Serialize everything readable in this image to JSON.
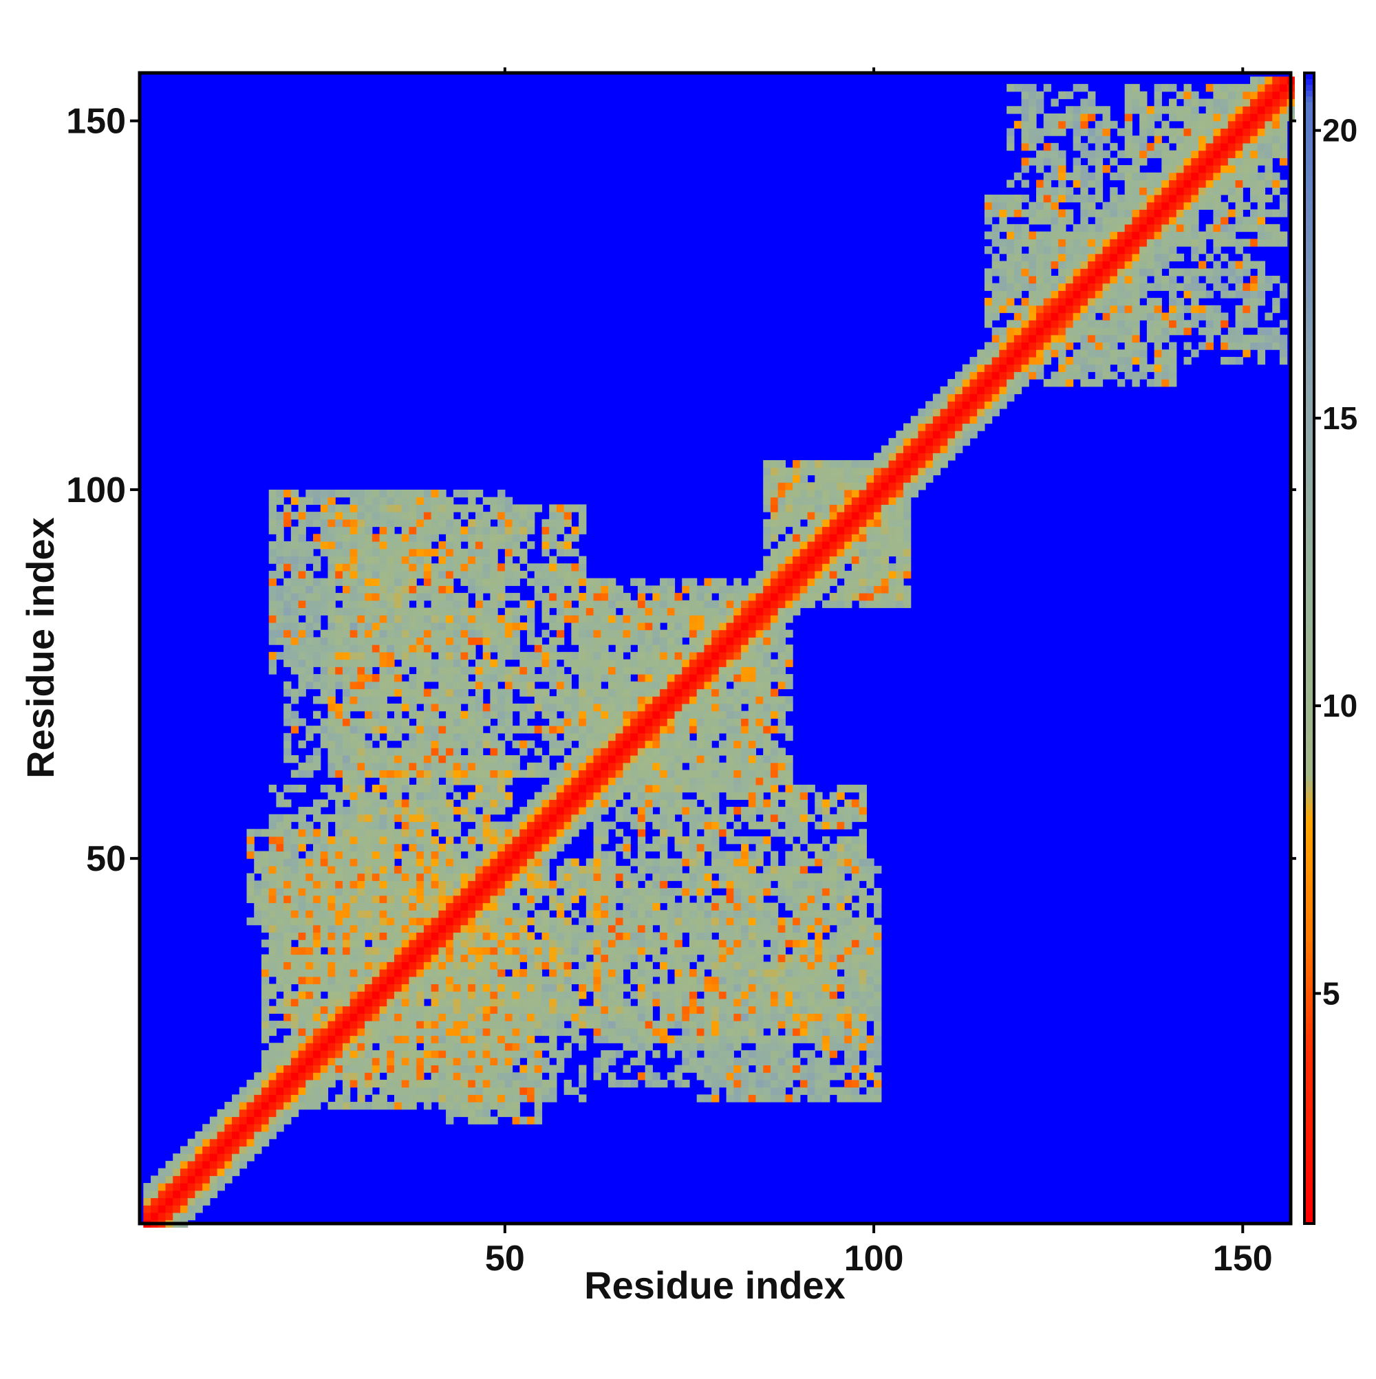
{
  "chart_data": {
    "type": "heatmap",
    "title": "",
    "xlabel": "Residue index",
    "ylabel": "Residue index",
    "n_residues": 156,
    "xlim": [
      1,
      156
    ],
    "ylim": [
      1,
      156
    ],
    "x_ticks": [
      50,
      100,
      150
    ],
    "y_ticks": [
      50,
      100,
      150
    ],
    "colorbar": {
      "min": 1,
      "max": 21,
      "ticks": [
        5,
        10,
        15,
        20
      ],
      "stops": [
        {
          "value": 1,
          "color": "#ff0000"
        },
        {
          "value": 4,
          "color": "#ff3000"
        },
        {
          "value": 6,
          "color": "#ff7a00"
        },
        {
          "value": 8,
          "color": "#ffa500"
        },
        {
          "value": 8.8,
          "color": "#a3b888"
        },
        {
          "value": 12,
          "color": "#98b49a"
        },
        {
          "value": 16,
          "color": "#8aa3b2"
        },
        {
          "value": 20.5,
          "color": "#5577cc"
        },
        {
          "value": 21,
          "color": "#0000ff"
        }
      ]
    },
    "background_color": "#0000ff",
    "contact_regions": [
      {
        "x0": 17,
        "x1": 40,
        "y0": 20,
        "y1": 48,
        "value": 11,
        "density": 0.8
      },
      {
        "x0": 28,
        "x1": 50,
        "y0": 36,
        "y1": 62,
        "value": 10.5,
        "density": 0.82
      },
      {
        "x0": 15,
        "x1": 35,
        "y0": 42,
        "y1": 54,
        "value": 11.5,
        "density": 0.75
      },
      {
        "x0": 40,
        "x1": 60,
        "y0": 18,
        "y1": 42,
        "value": 12,
        "density": 0.7
      },
      {
        "x0": 62,
        "x1": 78,
        "y0": 20,
        "y1": 30,
        "value": 13,
        "density": 0.55
      },
      {
        "x0": 78,
        "x1": 100,
        "y0": 18,
        "y1": 30,
        "value": 13.5,
        "density": 0.55
      },
      {
        "x0": 62,
        "x1": 100,
        "y0": 30,
        "y1": 50,
        "value": 12,
        "density": 0.65
      },
      {
        "x0": 18,
        "x1": 42,
        "y0": 76,
        "y1": 100,
        "value": 12.5,
        "density": 0.6
      },
      {
        "x0": 26,
        "x1": 60,
        "y0": 62,
        "y1": 98,
        "value": 11,
        "density": 0.7
      },
      {
        "x0": 60,
        "x1": 88,
        "y0": 60,
        "y1": 86,
        "value": 11.5,
        "density": 0.75
      },
      {
        "x0": 85,
        "x1": 103,
        "y0": 86,
        "y1": 104,
        "value": 11,
        "density": 0.85
      },
      {
        "x0": 118,
        "x1": 130,
        "y0": 140,
        "y1": 155,
        "value": 13.5,
        "density": 0.45
      },
      {
        "x0": 134,
        "x1": 152,
        "y0": 140,
        "y1": 155,
        "value": 11.5,
        "density": 0.7
      },
      {
        "x0": 134,
        "x1": 152,
        "y0": 120,
        "y1": 136,
        "value": 13,
        "density": 0.45
      },
      {
        "x0": 115,
        "x1": 135,
        "y0": 118,
        "y1": 140,
        "value": 12,
        "density": 0.65
      }
    ]
  }
}
